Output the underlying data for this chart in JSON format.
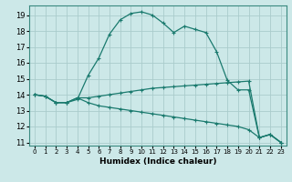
{
  "xlabel": "Humidex (Indice chaleur)",
  "xlim": [
    -0.5,
    23.5
  ],
  "ylim": [
    10.8,
    19.6
  ],
  "yticks": [
    11,
    12,
    13,
    14,
    15,
    16,
    17,
    18,
    19
  ],
  "xticks": [
    0,
    1,
    2,
    3,
    4,
    5,
    6,
    7,
    8,
    9,
    10,
    11,
    12,
    13,
    14,
    15,
    16,
    17,
    18,
    19,
    20,
    21,
    22,
    23
  ],
  "background_color": "#cce8e8",
  "grid_color": "#aacccc",
  "line_color": "#1a7a6e",
  "curve1_x": [
    0,
    1,
    2,
    3,
    4,
    5,
    6,
    7,
    8,
    9,
    10,
    11,
    12,
    13,
    14,
    15,
    16,
    17,
    18,
    19,
    20,
    21,
    22,
    23
  ],
  "curve1_y": [
    14.0,
    13.9,
    13.5,
    13.5,
    13.7,
    15.2,
    16.3,
    17.8,
    18.7,
    19.1,
    19.2,
    19.0,
    18.5,
    17.9,
    18.3,
    18.1,
    17.9,
    16.7,
    14.9,
    14.3,
    14.3,
    11.3,
    11.5,
    11.0
  ],
  "curve2_x": [
    0,
    1,
    2,
    3,
    4,
    5,
    6,
    7,
    8,
    9,
    10,
    11,
    12,
    13,
    14,
    15,
    16,
    17,
    18,
    19,
    20,
    21,
    22,
    23
  ],
  "curve2_y": [
    14.0,
    13.9,
    13.5,
    13.5,
    13.8,
    13.8,
    13.9,
    14.0,
    14.1,
    14.2,
    14.3,
    14.4,
    14.45,
    14.5,
    14.55,
    14.6,
    14.65,
    14.7,
    14.75,
    14.8,
    14.85,
    11.3,
    11.5,
    11.0
  ],
  "curve3_x": [
    0,
    1,
    2,
    3,
    4,
    5,
    6,
    7,
    8,
    9,
    10,
    11,
    12,
    13,
    14,
    15,
    16,
    17,
    18,
    19,
    20,
    21,
    22,
    23
  ],
  "curve3_y": [
    14.0,
    13.9,
    13.5,
    13.5,
    13.8,
    13.5,
    13.3,
    13.2,
    13.1,
    13.0,
    12.9,
    12.8,
    12.7,
    12.6,
    12.5,
    12.4,
    12.3,
    12.2,
    12.1,
    12.0,
    11.8,
    11.3,
    11.5,
    11.0
  ]
}
